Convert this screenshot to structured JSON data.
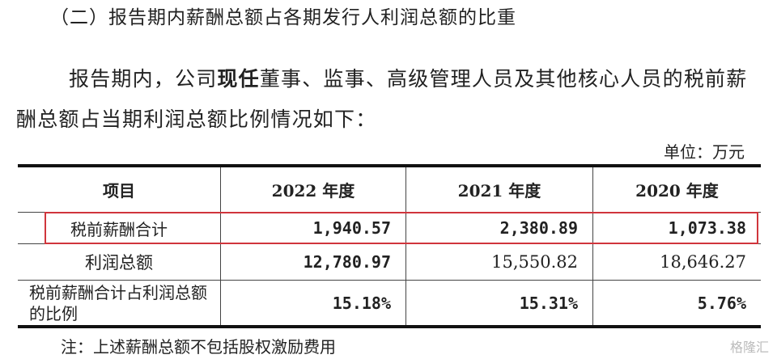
{
  "heading": "（二）报告期内薪酬总额占各期发行人利润总额的比重",
  "paragraph": {
    "lines": [
      [
        "报告期内，公司",
        "现任",
        "董事、监事、高级管理人员及其他核心人员的税前薪"
      ],
      [
        "酬总额占当期利润总额比例情况如下："
      ]
    ]
  },
  "unit": "单位：万元",
  "table": {
    "header": [
      "项目",
      "2022 年度",
      "2021 年度",
      "2020 年度"
    ],
    "rows": [
      [
        "税前薪酬合计",
        "1,940.57",
        "2,380.89",
        "1,073.38"
      ],
      [
        "利润总额",
        "12,780.97",
        "15,550.82",
        "18,646.27"
      ],
      [
        "税前薪酬合计占利润总额的比例",
        "15.18%",
        "15.31%",
        "5.76%"
      ]
    ]
  },
  "note": "注：上述薪酬总额不包括股权激励费用",
  "watermark": "格隆汇"
}
